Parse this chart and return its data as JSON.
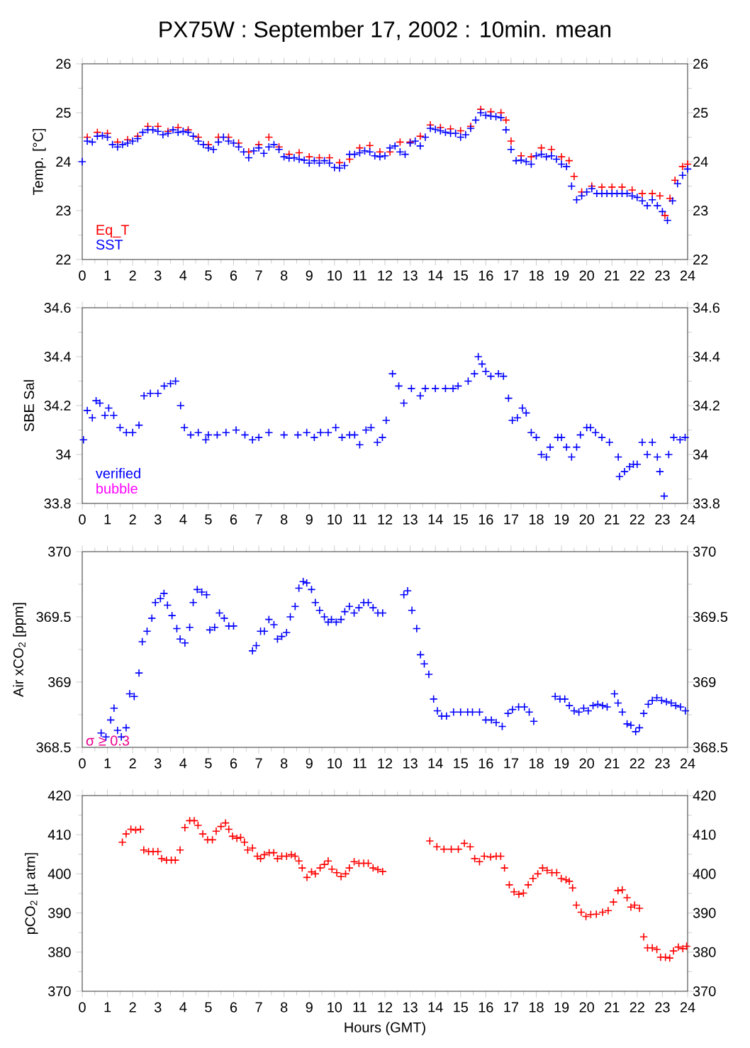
{
  "chart_data": [
    {
      "type": "scatter",
      "title": "PX75W : September 17, 2002 : 10min. mean",
      "ylabel": "Temp. [°C]",
      "marker": "cross",
      "legend": "bottom left",
      "xlim": [
        0,
        24
      ],
      "xticks": [
        0,
        1,
        2,
        3,
        4,
        5,
        6,
        7,
        8,
        9,
        10,
        11,
        12,
        13,
        14,
        15,
        16,
        17,
        18,
        19,
        20,
        21,
        22,
        23,
        24
      ],
      "ylim": [
        22,
        26
      ],
      "yticks": [
        22,
        23,
        24,
        25,
        26
      ],
      "y2lim": [
        22,
        26
      ],
      "y2ticks": [
        22,
        23,
        24,
        25,
        26
      ],
      "series": [
        {
          "name": "Eq_T",
          "color": "#ff0000",
          "x": [
            0.2,
            0.6,
            1.0,
            1.4,
            1.8,
            2.2,
            2.6,
            3.0,
            3.4,
            3.8,
            4.2,
            4.6,
            5.0,
            5.4,
            5.8,
            6.2,
            6.6,
            7.0,
            7.4,
            7.8,
            8.2,
            8.6,
            9.0,
            9.4,
            9.8,
            10.2,
            10.6,
            11.0,
            11.4,
            11.8,
            12.2,
            12.6,
            13.0,
            13.4,
            13.8,
            14.2,
            14.6,
            15.0,
            15.4,
            15.8,
            16.2,
            16.6,
            16.8,
            17.0,
            17.4,
            17.8,
            18.2,
            18.6,
            19.0,
            19.3,
            19.5,
            19.8,
            20.2,
            20.6,
            21.0,
            21.4,
            21.8,
            22.2,
            22.6,
            22.9,
            23.1,
            23.3,
            23.5,
            23.8,
            24.0
          ],
          "values": [
            24.5,
            24.6,
            24.58,
            24.4,
            24.45,
            24.52,
            24.72,
            24.72,
            24.62,
            24.7,
            24.65,
            24.5,
            24.35,
            24.5,
            24.5,
            24.38,
            24.2,
            24.35,
            24.5,
            24.3,
            24.15,
            24.18,
            24.1,
            24.08,
            24.08,
            23.98,
            24.05,
            24.28,
            24.33,
            24.2,
            24.2,
            24.4,
            24.4,
            24.52,
            24.75,
            24.7,
            24.67,
            24.63,
            24.72,
            25.07,
            25.02,
            25.0,
            24.85,
            24.42,
            24.12,
            24.1,
            24.28,
            24.25,
            24.1,
            24.02,
            23.7,
            23.38,
            23.5,
            23.48,
            23.48,
            23.48,
            23.42,
            23.35,
            23.35,
            23.3,
            22.9,
            23.25,
            23.62,
            23.9,
            23.95
          ]
        },
        {
          "name": "SST",
          "color": "#0000ff",
          "x": [
            0.0,
            0.2,
            0.4,
            0.6,
            0.8,
            1.0,
            1.2,
            1.4,
            1.6,
            1.8,
            2.0,
            2.2,
            2.4,
            2.6,
            2.8,
            3.0,
            3.2,
            3.4,
            3.6,
            3.8,
            4.0,
            4.2,
            4.4,
            4.6,
            4.8,
            5.0,
            5.2,
            5.4,
            5.6,
            5.8,
            6.0,
            6.2,
            6.4,
            6.6,
            6.8,
            7.0,
            7.2,
            7.4,
            7.6,
            7.8,
            8.0,
            8.2,
            8.4,
            8.6,
            8.8,
            9.0,
            9.2,
            9.4,
            9.6,
            9.8,
            10.0,
            10.2,
            10.4,
            10.6,
            10.8,
            11.0,
            11.2,
            11.4,
            11.6,
            11.8,
            12.0,
            12.2,
            12.4,
            12.6,
            12.8,
            13.0,
            13.2,
            13.4,
            13.6,
            13.8,
            14.0,
            14.2,
            14.4,
            14.6,
            14.8,
            15.0,
            15.2,
            15.4,
            15.6,
            15.8,
            16.0,
            16.2,
            16.4,
            16.6,
            16.8,
            17.0,
            17.2,
            17.4,
            17.6,
            17.8,
            18.0,
            18.2,
            18.4,
            18.6,
            18.8,
            19.0,
            19.2,
            19.4,
            19.6,
            19.8,
            20.0,
            20.2,
            20.4,
            20.6,
            20.8,
            21.0,
            21.2,
            21.4,
            21.6,
            21.8,
            22.0,
            22.2,
            22.4,
            22.6,
            22.8,
            23.0,
            23.2,
            23.4,
            23.6,
            23.8,
            24.0
          ],
          "values": [
            24.0,
            24.42,
            24.4,
            24.52,
            24.53,
            24.5,
            24.35,
            24.3,
            24.35,
            24.38,
            24.42,
            24.47,
            24.6,
            24.65,
            24.65,
            24.62,
            24.55,
            24.58,
            24.65,
            24.6,
            24.62,
            24.6,
            24.52,
            24.42,
            24.35,
            24.28,
            24.25,
            24.4,
            24.5,
            24.42,
            24.38,
            24.3,
            24.2,
            24.08,
            24.22,
            24.28,
            24.17,
            24.3,
            24.35,
            24.25,
            24.1,
            24.07,
            24.08,
            24.05,
            24.03,
            23.97,
            24.02,
            23.97,
            24.02,
            23.97,
            23.88,
            23.87,
            23.92,
            24.15,
            24.15,
            24.18,
            24.22,
            24.2,
            24.12,
            24.1,
            24.12,
            24.28,
            24.32,
            24.2,
            24.15,
            24.38,
            24.42,
            24.32,
            24.5,
            24.68,
            24.66,
            24.63,
            24.6,
            24.58,
            24.58,
            24.5,
            24.55,
            24.68,
            24.85,
            25.0,
            24.95,
            24.93,
            24.92,
            24.9,
            24.65,
            24.25,
            24.02,
            24.03,
            24.0,
            23.95,
            24.12,
            24.15,
            24.1,
            24.12,
            24.05,
            23.95,
            23.9,
            23.5,
            23.22,
            23.3,
            23.38,
            23.45,
            23.35,
            23.35,
            23.35,
            23.35,
            23.35,
            23.35,
            23.35,
            23.3,
            23.27,
            23.2,
            23.1,
            23.22,
            23.1,
            22.98,
            22.8,
            23.2,
            23.55,
            23.72,
            23.85
          ]
        }
      ]
    },
    {
      "type": "scatter",
      "ylabel": "SBE Sal",
      "marker": "cross",
      "legend": "bottom left",
      "xlim": [
        0,
        24
      ],
      "xticks": [
        0,
        1,
        2,
        3,
        4,
        5,
        6,
        7,
        8,
        9,
        10,
        11,
        12,
        13,
        14,
        15,
        16,
        17,
        18,
        19,
        20,
        21,
        22,
        23,
        24
      ],
      "ylim": [
        33.8,
        34.6
      ],
      "yticks": [
        33.8,
        34,
        34.2,
        34.4,
        34.6
      ],
      "y2lim": [
        33.8,
        34.6
      ],
      "y2ticks": [
        33.8,
        34,
        34.2,
        34.4,
        34.6
      ],
      "series": [
        {
          "name": "verified",
          "color": "#0000ff",
          "x": [
            0.05,
            0.2,
            0.4,
            0.55,
            0.7,
            0.9,
            1.05,
            1.25,
            1.5,
            1.75,
            2.0,
            2.25,
            2.45,
            2.7,
            3.0,
            3.25,
            3.5,
            3.7,
            3.9,
            4.05,
            4.3,
            4.6,
            4.9,
            5.0,
            5.35,
            5.7,
            6.1,
            6.45,
            6.75,
            7.0,
            7.4,
            8.0,
            8.55,
            8.9,
            9.2,
            9.45,
            9.75,
            10.05,
            10.3,
            10.6,
            10.8,
            11.0,
            11.25,
            11.45,
            11.7,
            11.9,
            12.05,
            12.3,
            12.55,
            12.75,
            13.05,
            13.4,
            13.6,
            14.0,
            14.4,
            14.7,
            14.9,
            15.3,
            15.55,
            15.7,
            15.85,
            16.0,
            16.2,
            16.5,
            16.7,
            16.9,
            17.05,
            17.25,
            17.45,
            17.6,
            17.8,
            18.0,
            18.2,
            18.4,
            18.55,
            18.85,
            19.0,
            19.2,
            19.4,
            19.6,
            19.75,
            20.0,
            20.15,
            20.35,
            20.6,
            20.9,
            21.25,
            21.3,
            21.5,
            21.7,
            21.85,
            22.0,
            22.2,
            22.4,
            22.6,
            22.8,
            22.9,
            23.07,
            23.25,
            23.45,
            23.7,
            23.9
          ],
          "values": [
            34.06,
            34.18,
            34.15,
            34.22,
            34.21,
            34.16,
            34.19,
            34.16,
            34.11,
            34.09,
            34.09,
            34.12,
            34.24,
            34.25,
            34.25,
            34.28,
            34.29,
            34.3,
            34.2,
            34.11,
            34.08,
            34.09,
            34.06,
            34.08,
            34.08,
            34.09,
            34.1,
            34.08,
            34.06,
            34.07,
            34.09,
            34.08,
            34.08,
            34.09,
            34.07,
            34.09,
            34.09,
            34.11,
            34.07,
            34.08,
            34.08,
            34.04,
            34.1,
            34.11,
            34.05,
            34.07,
            34.14,
            34.33,
            34.28,
            34.21,
            34.27,
            34.24,
            34.27,
            34.27,
            34.27,
            34.27,
            34.28,
            34.3,
            34.33,
            34.4,
            34.37,
            34.34,
            34.32,
            34.33,
            34.32,
            34.23,
            34.14,
            34.15,
            34.19,
            34.17,
            34.09,
            34.07,
            34.0,
            33.99,
            34.03,
            34.07,
            34.07,
            34.03,
            33.99,
            34.03,
            34.08,
            34.11,
            34.11,
            34.09,
            34.07,
            34.05,
            33.99,
            33.91,
            33.93,
            33.95,
            33.96,
            33.96,
            34.05,
            34.0,
            34.05,
            33.99,
            33.93,
            33.83,
            34.0,
            34.07,
            34.06,
            34.07
          ]
        },
        {
          "name": "bubble",
          "color": "#ff00ff"
        }
      ]
    },
    {
      "type": "scatter",
      "ylabel": "Air xCO$_{2}$ [ppm]",
      "marker": "cross",
      "annotations": [
        "σ ≥ 0.3"
      ],
      "xlim": [
        0,
        24
      ],
      "xticks": [
        0,
        1,
        2,
        3,
        4,
        5,
        6,
        7,
        8,
        9,
        10,
        11,
        12,
        13,
        14,
        15,
        16,
        17,
        18,
        19,
        20,
        21,
        22,
        23,
        24
      ],
      "ylim": [
        368.5,
        370
      ],
      "yticks": [
        368.5,
        369,
        369.5,
        370
      ],
      "y2lim": [
        368.5,
        370
      ],
      "y2ticks": [
        368.5,
        369,
        369.5,
        370
      ],
      "series": [
        {
          "color": "#0000ff",
          "x": [
            0.75,
            0.94,
            1.13,
            1.26,
            1.4,
            1.55,
            1.74,
            1.88,
            2.06,
            2.25,
            2.38,
            2.57,
            2.76,
            2.9,
            3.1,
            3.24,
            3.38,
            3.56,
            3.75,
            3.88,
            4.07,
            4.26,
            4.4,
            4.56,
            4.74,
            4.93,
            5.06,
            5.25,
            5.44,
            5.63,
            5.81,
            6.0,
            6.75,
            6.9,
            7.07,
            7.22,
            7.4,
            7.6,
            7.74,
            7.91,
            8.1,
            8.25,
            8.44,
            8.59,
            8.76,
            8.9,
            9.09,
            9.24,
            9.41,
            9.6,
            9.75,
            9.88,
            10.07,
            10.26,
            10.41,
            10.59,
            10.78,
            10.97,
            11.16,
            11.34,
            11.53,
            11.72,
            11.91,
            12.75,
            12.9,
            13.07,
            13.26,
            13.41,
            13.56,
            13.74,
            13.93,
            14.08,
            14.25,
            14.44,
            14.72,
            15.0,
            15.28,
            15.47,
            15.75,
            16.0,
            16.22,
            16.41,
            16.65,
            16.88,
            17.06,
            17.3,
            17.53,
            17.72,
            17.9,
            18.75,
            18.94,
            19.13,
            19.31,
            19.5,
            19.69,
            19.88,
            20.06,
            20.25,
            20.44,
            20.63,
            20.81,
            21.1,
            21.24,
            21.41,
            21.6,
            21.75,
            21.94,
            22.09,
            22.26,
            22.44,
            22.6,
            22.78,
            22.97,
            23.16,
            23.35,
            23.53,
            23.72,
            23.91
          ],
          "values": [
            368.61,
            368.58,
            368.71,
            368.8,
            368.63,
            368.58,
            368.65,
            368.91,
            368.89,
            369.07,
            369.31,
            369.39,
            369.49,
            369.61,
            369.64,
            369.68,
            369.59,
            369.51,
            369.41,
            369.33,
            369.3,
            369.42,
            369.61,
            369.71,
            369.69,
            369.67,
            369.4,
            369.42,
            369.53,
            369.49,
            369.43,
            369.43,
            369.24,
            369.28,
            369.39,
            369.39,
            369.48,
            369.44,
            369.33,
            369.35,
            369.38,
            369.5,
            369.58,
            369.72,
            369.77,
            369.76,
            369.71,
            369.61,
            369.55,
            369.5,
            369.46,
            369.48,
            369.46,
            369.48,
            369.54,
            369.58,
            369.53,
            369.57,
            369.61,
            369.61,
            369.57,
            369.53,
            369.53,
            369.67,
            369.7,
            369.55,
            369.41,
            369.21,
            369.14,
            369.06,
            368.87,
            368.78,
            368.74,
            368.74,
            368.77,
            368.77,
            368.77,
            368.77,
            368.77,
            368.71,
            368.71,
            368.69,
            368.66,
            368.76,
            368.79,
            368.81,
            368.81,
            368.77,
            368.7,
            368.89,
            368.87,
            368.87,
            368.82,
            368.78,
            368.77,
            368.8,
            368.78,
            368.82,
            368.83,
            368.82,
            368.81,
            368.91,
            368.84,
            368.77,
            368.68,
            368.67,
            368.62,
            368.65,
            368.76,
            368.83,
            368.86,
            368.88,
            368.86,
            368.85,
            368.84,
            368.82,
            368.81,
            368.78
          ]
        }
      ]
    },
    {
      "type": "scatter",
      "ylabel": "pCO$_{2}$ [µ atm]",
      "xlabel": "Hours (GMT)",
      "marker": "cross",
      "xlim": [
        0,
        24
      ],
      "xticks": [
        0,
        1,
        2,
        3,
        4,
        5,
        6,
        7,
        8,
        9,
        10,
        11,
        12,
        13,
        14,
        15,
        16,
        17,
        18,
        19,
        20,
        21,
        22,
        23,
        24
      ],
      "ylim": [
        370,
        420
      ],
      "yticks": [
        370,
        380,
        390,
        400,
        410,
        420
      ],
      "y2lim": [
        370,
        420
      ],
      "y2ticks": [
        370,
        380,
        390,
        400,
        410,
        420
      ],
      "series": [
        {
          "color": "#ff0000",
          "x": [
            1.59,
            1.74,
            1.93,
            2.12,
            2.31,
            2.44,
            2.63,
            2.81,
            3.0,
            3.15,
            3.34,
            3.53,
            3.69,
            3.88,
            4.07,
            4.26,
            4.44,
            4.59,
            4.78,
            4.97,
            5.16,
            5.31,
            5.5,
            5.68,
            5.81,
            5.96,
            6.13,
            6.28,
            6.43,
            6.56,
            6.75,
            6.94,
            7.07,
            7.22,
            7.41,
            7.59,
            7.74,
            7.91,
            8.1,
            8.29,
            8.44,
            8.59,
            8.72,
            8.91,
            9.09,
            9.24,
            9.43,
            9.6,
            9.75,
            9.9,
            10.09,
            10.26,
            10.44,
            10.59,
            10.78,
            10.97,
            11.16,
            11.34,
            11.53,
            11.72,
            11.91,
            13.78,
            14.06,
            14.34,
            14.63,
            14.91,
            15.15,
            15.38,
            15.56,
            15.75,
            15.94,
            16.19,
            16.41,
            16.59,
            16.74,
            16.93,
            17.12,
            17.31,
            17.49,
            17.68,
            17.87,
            18.06,
            18.25,
            18.43,
            18.62,
            18.81,
            18.99,
            19.18,
            19.31,
            19.44,
            19.59,
            19.78,
            19.97,
            20.16,
            20.38,
            20.63,
            20.85,
            21.06,
            21.24,
            21.41,
            21.6,
            21.75,
            21.9,
            22.09,
            22.26,
            22.41,
            22.6,
            22.78,
            22.93,
            23.12,
            23.29,
            23.44,
            23.63,
            23.81,
            23.96
          ],
          "values": [
            408.1,
            410.2,
            411.4,
            411.2,
            411.4,
            406.1,
            405.7,
            405.7,
            405.7,
            403.9,
            403.5,
            403.5,
            403.5,
            406.1,
            411.8,
            413.6,
            413.6,
            412.4,
            410.2,
            408.7,
            408.7,
            410.9,
            412.1,
            413.0,
            411.4,
            409.6,
            409.1,
            409.3,
            408.1,
            406.1,
            406.6,
            404.5,
            403.9,
            404.9,
            405.4,
            405.4,
            403.9,
            404.5,
            404.5,
            404.9,
            404.5,
            403.3,
            401.5,
            399.1,
            400.5,
            400.0,
            401.5,
            402.4,
            403.3,
            401.2,
            400.3,
            399.3,
            400.0,
            401.5,
            403.1,
            402.7,
            402.7,
            402.7,
            401.5,
            401.1,
            400.6,
            408.4,
            406.9,
            406.3,
            406.3,
            406.3,
            407.8,
            406.9,
            403.9,
            403.1,
            404.5,
            404.3,
            404.5,
            404.5,
            401.5,
            397.2,
            395.4,
            394.8,
            395.1,
            397.2,
            398.8,
            400.0,
            401.5,
            400.9,
            400.3,
            400.3,
            398.8,
            398.5,
            398.1,
            396.4,
            392.0,
            390.2,
            389.1,
            389.6,
            389.7,
            390.2,
            390.6,
            392.8,
            395.7,
            395.9,
            393.9,
            391.5,
            392.0,
            391.2,
            383.9,
            381.1,
            381.1,
            380.7,
            378.7,
            378.7,
            378.5,
            380.3,
            381.3,
            380.9,
            381.5
          ]
        }
      ]
    }
  ]
}
